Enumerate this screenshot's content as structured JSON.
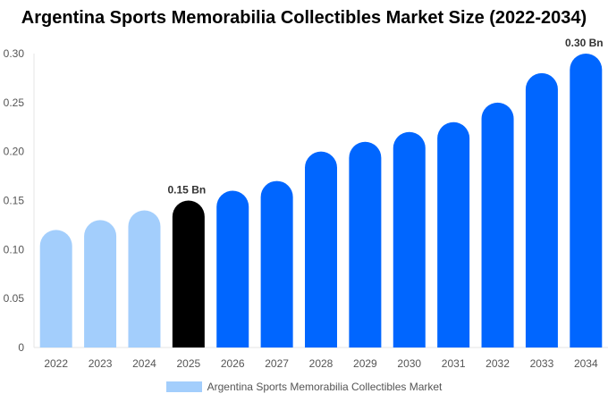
{
  "chart_data": {
    "type": "bar",
    "title": "Argentina Sports Memorabilia Collectibles Market Size (2022-2034)",
    "categories": [
      "2022",
      "2023",
      "2024",
      "2025",
      "2026",
      "2027",
      "2028",
      "2029",
      "2030",
      "2031",
      "2032",
      "2033",
      "2034"
    ],
    "series": [
      {
        "name": "Argentina Sports Memorabilia Collectibles Market",
        "values": [
          0.12,
          0.13,
          0.14,
          0.15,
          0.16,
          0.17,
          0.2,
          0.21,
          0.22,
          0.23,
          0.25,
          0.28,
          0.3
        ]
      }
    ],
    "ylim": [
      0,
      0.3
    ],
    "yticks": [
      "0",
      "0.05",
      "0.10",
      "0.15",
      "0.20",
      "0.25",
      "0.30"
    ],
    "data_labels": [
      {
        "index": 3,
        "text": "0.15 Bn"
      },
      {
        "index": 12,
        "text": "0.30 Bn"
      }
    ],
    "colors": {
      "historical": "#a3cefc",
      "current": "#000000",
      "forecast": "#0066ff"
    },
    "grid": false,
    "legend": "bottom"
  }
}
